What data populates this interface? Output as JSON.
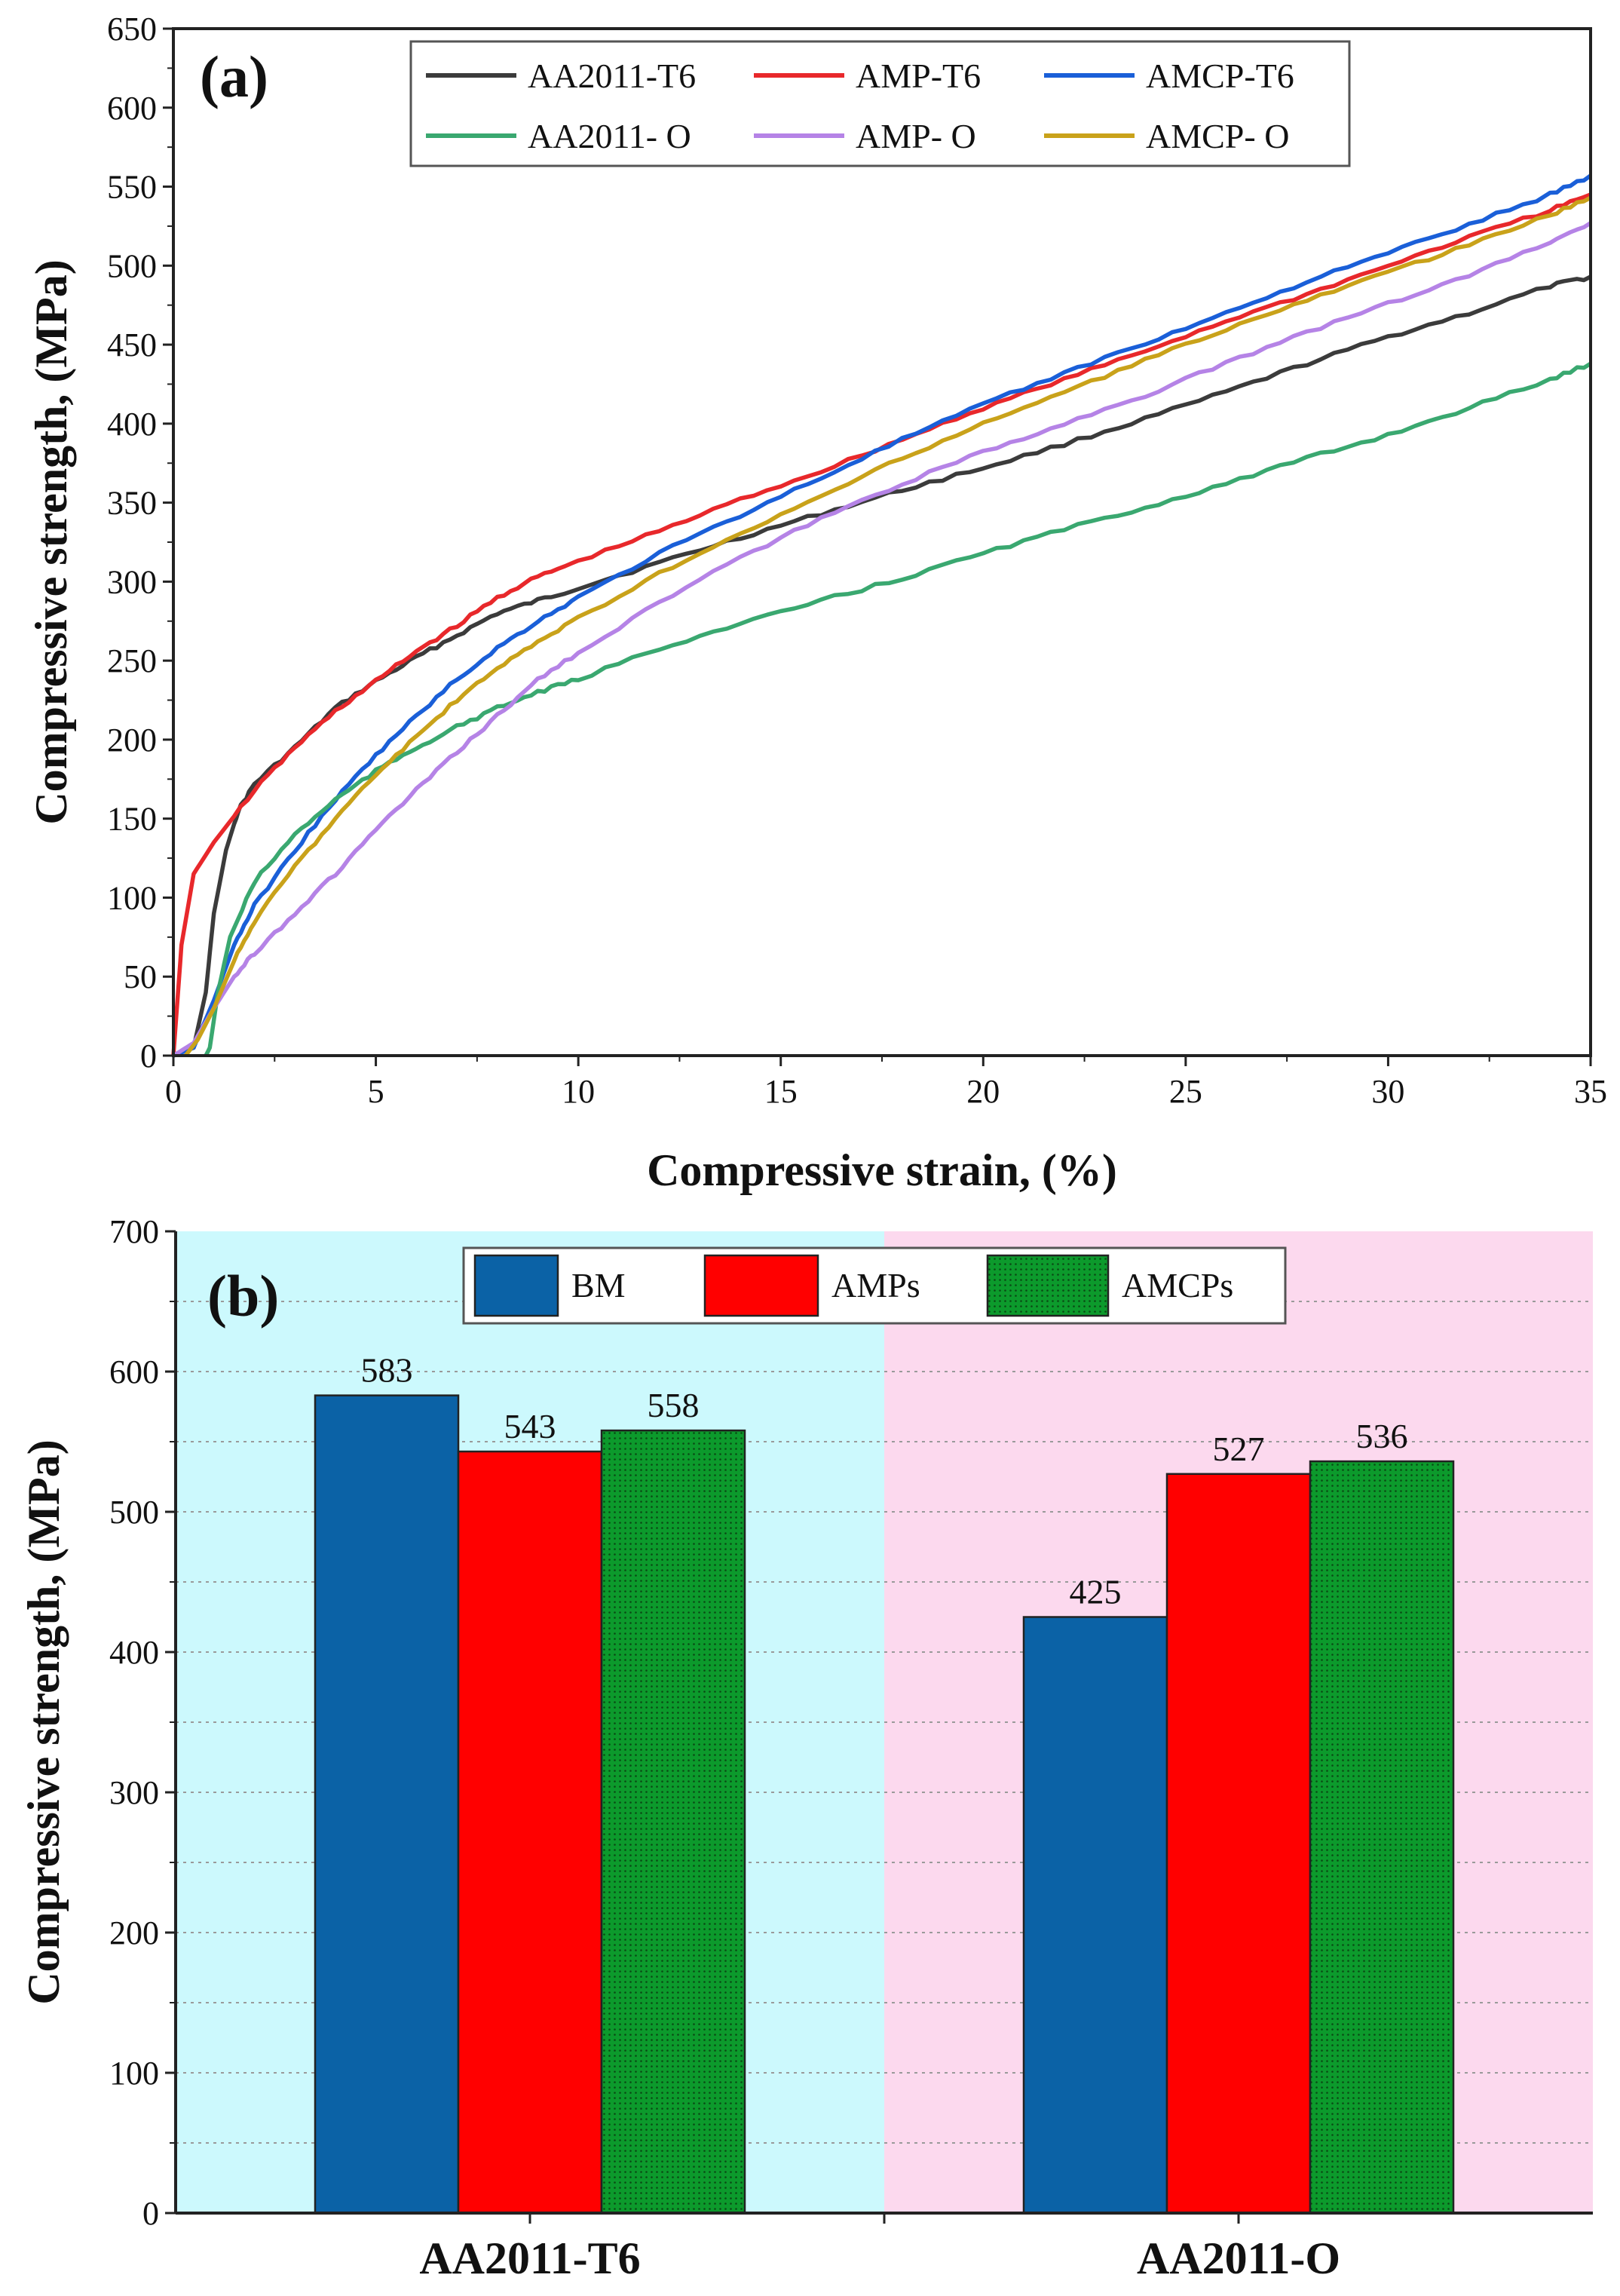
{
  "chart_data": [
    {
      "type": "line",
      "panel_label": "(a)",
      "xlabel": "Compressive strain, (%)",
      "ylabel": "Compressive strength, (MPa)",
      "xlim": [
        0,
        35
      ],
      "ylim": [
        0,
        650
      ],
      "xticks": [
        0,
        5,
        10,
        15,
        20,
        25,
        30,
        35
      ],
      "yticks": [
        0,
        50,
        100,
        150,
        200,
        250,
        300,
        350,
        400,
        450,
        500,
        550,
        600,
        650
      ],
      "grid": false,
      "legend_position": "top-right",
      "series": [
        {
          "name": "AA2011-T6",
          "color": "#3b3b3b",
          "points": [
            [
              0,
              0
            ],
            [
              0.5,
              5
            ],
            [
              0.8,
              40
            ],
            [
              1.0,
              90
            ],
            [
              1.3,
              130
            ],
            [
              1.6,
              155
            ],
            [
              2.0,
              172
            ],
            [
              3,
              195
            ],
            [
              4,
              220
            ],
            [
              5,
              237
            ],
            [
              6,
              252
            ],
            [
              7,
              266
            ],
            [
              8,
              280
            ],
            [
              9,
              288
            ],
            [
              10,
              296
            ],
            [
              12,
              312
            ],
            [
              14,
              328
            ],
            [
              16,
              343
            ],
            [
              18,
              358
            ],
            [
              20,
              372
            ],
            [
              22,
              387
            ],
            [
              24,
              403
            ],
            [
              26,
              420
            ],
            [
              28,
              438
            ],
            [
              30,
              455
            ],
            [
              32,
              470
            ],
            [
              34,
              487
            ],
            [
              35,
              493
            ]
          ]
        },
        {
          "name": "AMP-T6",
          "color": "#e8282b",
          "points": [
            [
              0,
              0
            ],
            [
              0.2,
              70
            ],
            [
              0.5,
              115
            ],
            [
              1,
              135
            ],
            [
              2,
              168
            ],
            [
              3,
              195
            ],
            [
              4,
              218
            ],
            [
              5,
              237
            ],
            [
              6,
              256
            ],
            [
              7,
              272
            ],
            [
              8,
              290
            ],
            [
              9,
              303
            ],
            [
              10,
              313
            ],
            [
              12,
              332
            ],
            [
              14,
              352
            ],
            [
              16,
              370
            ],
            [
              18,
              390
            ],
            [
              20,
              410
            ],
            [
              22,
              428
            ],
            [
              24,
              446
            ],
            [
              26,
              465
            ],
            [
              28,
              482
            ],
            [
              30,
              500
            ],
            [
              32,
              518
            ],
            [
              34,
              535
            ],
            [
              35,
              545
            ]
          ]
        },
        {
          "name": "AMCP-T6",
          "color": "#1a5fd8",
          "points": [
            [
              0,
              0
            ],
            [
              0.5,
              5
            ],
            [
              1,
              35
            ],
            [
              1.5,
              70
            ],
            [
              2,
              95
            ],
            [
              3,
              130
            ],
            [
              4,
              162
            ],
            [
              5,
              190
            ],
            [
              6,
              215
            ],
            [
              7,
              238
            ],
            [
              8,
              258
            ],
            [
              9,
              275
            ],
            [
              10,
              290
            ],
            [
              12,
              318
            ],
            [
              14,
              342
            ],
            [
              16,
              366
            ],
            [
              18,
              390
            ],
            [
              20,
              412
            ],
            [
              22,
              432
            ],
            [
              24,
              451
            ],
            [
              26,
              470
            ],
            [
              28,
              490
            ],
            [
              30,
              508
            ],
            [
              32,
              526
            ],
            [
              34,
              545
            ],
            [
              35,
              557
            ]
          ]
        },
        {
          "name": "AA2011- O",
          "color": "#3aa870",
          "points": [
            [
              0.8,
              0
            ],
            [
              0.9,
              5
            ],
            [
              1.1,
              40
            ],
            [
              1.4,
              75
            ],
            [
              2,
              110
            ],
            [
              3,
              140
            ],
            [
              4,
              162
            ],
            [
              5,
              180
            ],
            [
              6,
              195
            ],
            [
              7,
              208
            ],
            [
              8,
              220
            ],
            [
              9,
              230
            ],
            [
              10,
              238
            ],
            [
              12,
              258
            ],
            [
              14,
              273
            ],
            [
              16,
              288
            ],
            [
              18,
              302
            ],
            [
              20,
              318
            ],
            [
              22,
              333
            ],
            [
              24,
              347
            ],
            [
              26,
              362
            ],
            [
              28,
              378
            ],
            [
              30,
              393
            ],
            [
              32,
              410
            ],
            [
              34,
              428
            ],
            [
              35,
              438
            ]
          ]
        },
        {
          "name": "AMP- O",
          "color": "#b583e6",
          "points": [
            [
              0,
              0
            ],
            [
              0.5,
              8
            ],
            [
              1,
              30
            ],
            [
              1.5,
              50
            ],
            [
              2,
              65
            ],
            [
              3,
              90
            ],
            [
              4,
              115
            ],
            [
              5,
              143
            ],
            [
              6,
              168
            ],
            [
              7,
              192
            ],
            [
              8,
              215
            ],
            [
              9,
              238
            ],
            [
              10,
              255
            ],
            [
              12,
              287
            ],
            [
              14,
              315
            ],
            [
              16,
              340
            ],
            [
              18,
              362
            ],
            [
              20,
              382
            ],
            [
              22,
              400
            ],
            [
              24,
              418
            ],
            [
              26,
              438
            ],
            [
              28,
              458
            ],
            [
              30,
              476
            ],
            [
              32,
              494
            ],
            [
              34,
              515
            ],
            [
              35,
              527
            ]
          ]
        },
        {
          "name": "AMCP- O",
          "color": "#c9a21a",
          "points": [
            [
              0.3,
              0
            ],
            [
              0.6,
              10
            ],
            [
              1,
              30
            ],
            [
              1.5,
              60
            ],
            [
              2,
              85
            ],
            [
              3,
              120
            ],
            [
              4,
              150
            ],
            [
              5,
              178
            ],
            [
              6,
              202
            ],
            [
              7,
              225
            ],
            [
              8,
              245
            ],
            [
              9,
              262
            ],
            [
              10,
              277
            ],
            [
              12,
              305
            ],
            [
              14,
              330
            ],
            [
              16,
              354
            ],
            [
              18,
              378
            ],
            [
              20,
              400
            ],
            [
              22,
              420
            ],
            [
              24,
              440
            ],
            [
              26,
              460
            ],
            [
              28,
              478
            ],
            [
              30,
              496
            ],
            [
              32,
              513
            ],
            [
              34,
              532
            ],
            [
              35,
              543
            ]
          ]
        }
      ]
    },
    {
      "type": "bar",
      "panel_label": "(b)",
      "ylabel": "Compressive strength, (MPa)",
      "categories": [
        "AA2011-T6",
        "AA2011-O"
      ],
      "ylim": [
        0,
        700
      ],
      "yticks": [
        0,
        100,
        200,
        300,
        400,
        500,
        600,
        700
      ],
      "grid": true,
      "legend_position": "top-center",
      "background_colors": [
        "#ccf9fd",
        "#fcd9ee"
      ],
      "series": [
        {
          "name": "BM",
          "color": "#0b62a6",
          "values": [
            583,
            425
          ],
          "labels": [
            "583",
            "425"
          ]
        },
        {
          "name": "AMPs",
          "color": "#ff0000",
          "values": [
            543,
            527
          ],
          "labels": [
            "543",
            "527"
          ]
        },
        {
          "name": "AMCPs",
          "color": "#0c9a2c",
          "values": [
            558,
            536
          ],
          "labels": [
            "558",
            "536"
          ]
        }
      ]
    }
  ]
}
